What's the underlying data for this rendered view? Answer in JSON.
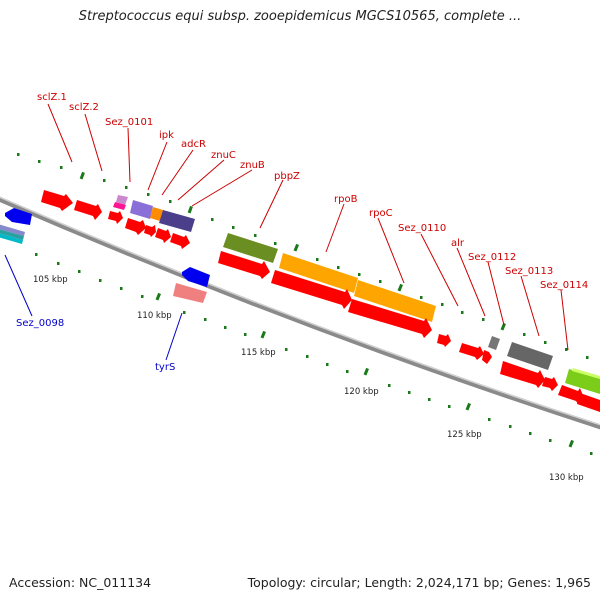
{
  "title": "Streptococcus equi subsp. zooepidemicus MGCS10565, complete ...",
  "accession": "Accession: NC_011134",
  "topology": "Topology: circular; Length: 2,024,171 bp; Genes: 1,965",
  "scale_labels": [
    "105 kbp",
    "110 kbp",
    "115 kbp",
    "120 kbp",
    "125 kbp",
    "130 kbp"
  ],
  "colors": {
    "forward_gene": "#ff0000",
    "reverse_gene": "#0000ff",
    "label_forward": "#cc0000",
    "label_reverse": "#0000cc",
    "backbone": "#888888",
    "tick": "#228b22"
  },
  "forward_labels": [
    "sclZ.1",
    "sclZ.2",
    "Sez_0101",
    "ipk",
    "adcR",
    "znuC",
    "znuB",
    "pbpZ",
    "rpoB",
    "rpoC",
    "Sez_0110",
    "alr",
    "Sez_0112",
    "Sez_0113",
    "Sez_0114"
  ],
  "reverse_labels": [
    "Sez_0098",
    "tyrS"
  ]
}
